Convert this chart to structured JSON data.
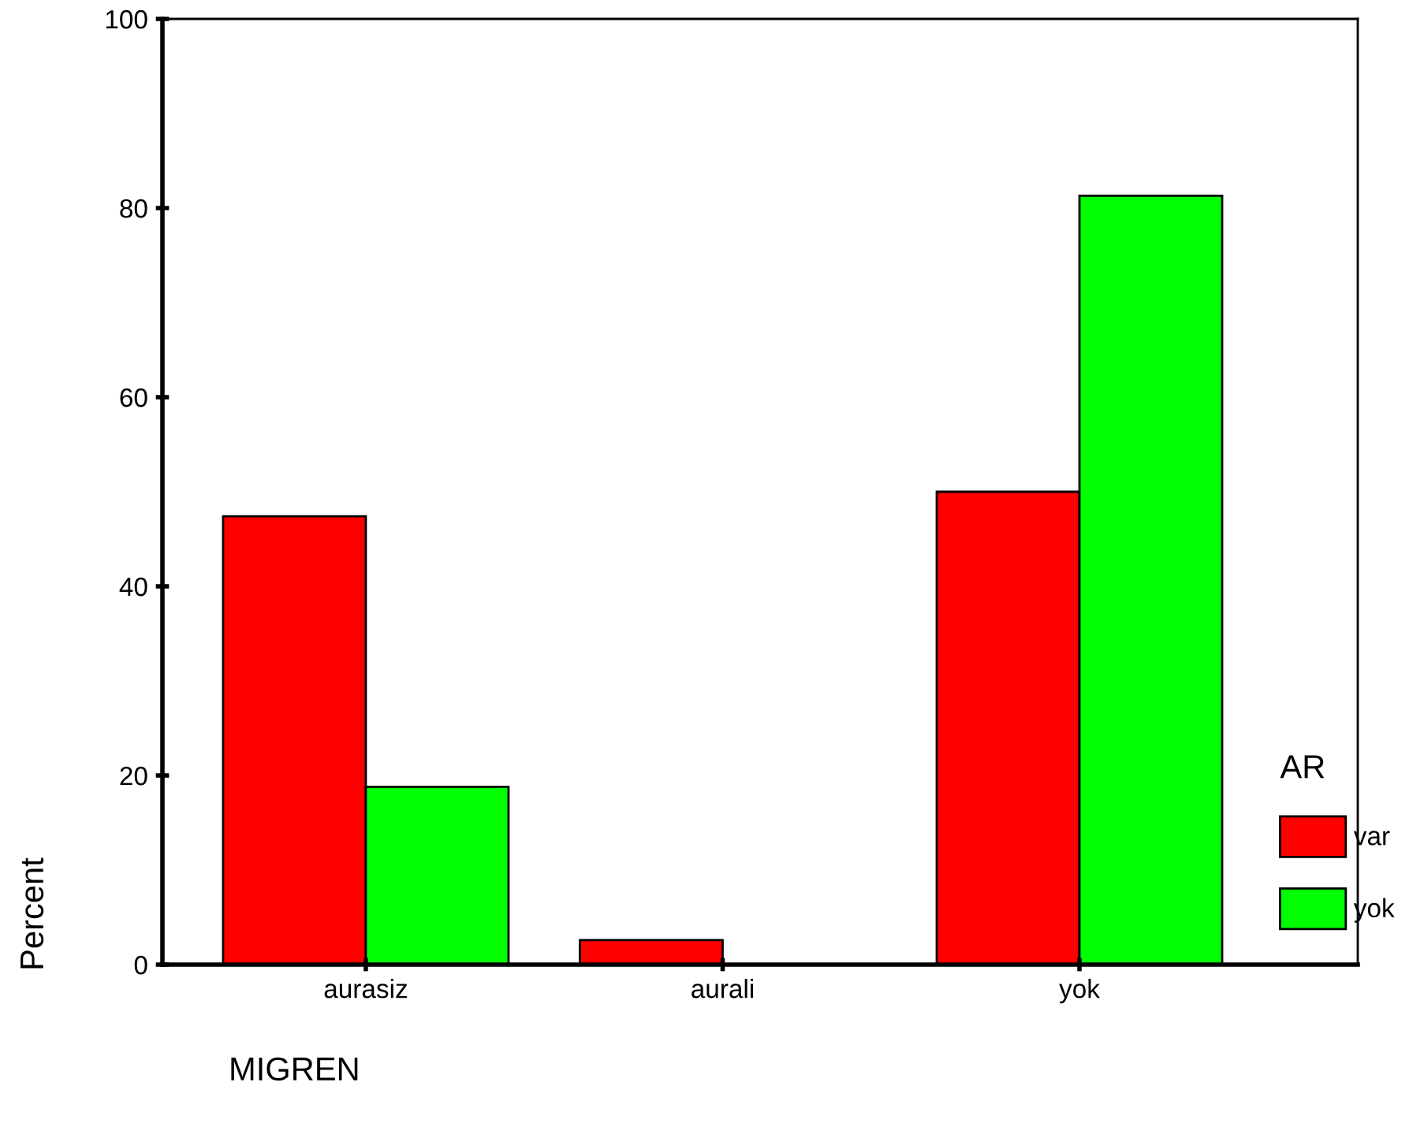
{
  "chart_data": {
    "type": "bar",
    "xlabel": "MIGREN",
    "ylabel": "Percent",
    "legend_title": "AR",
    "categories": [
      "aurasiz",
      "aurali",
      "yok"
    ],
    "series": [
      {
        "name": "var",
        "color": "#ff0000",
        "values": [
          47.4,
          2.6,
          50.0
        ]
      },
      {
        "name": "yok",
        "color": "#00ff00",
        "values": [
          18.8,
          null,
          81.3
        ]
      }
    ],
    "ylim": [
      0,
      100
    ],
    "yticks": [
      0,
      20,
      40,
      60,
      80,
      100
    ],
    "grid": false,
    "legend": "right"
  }
}
